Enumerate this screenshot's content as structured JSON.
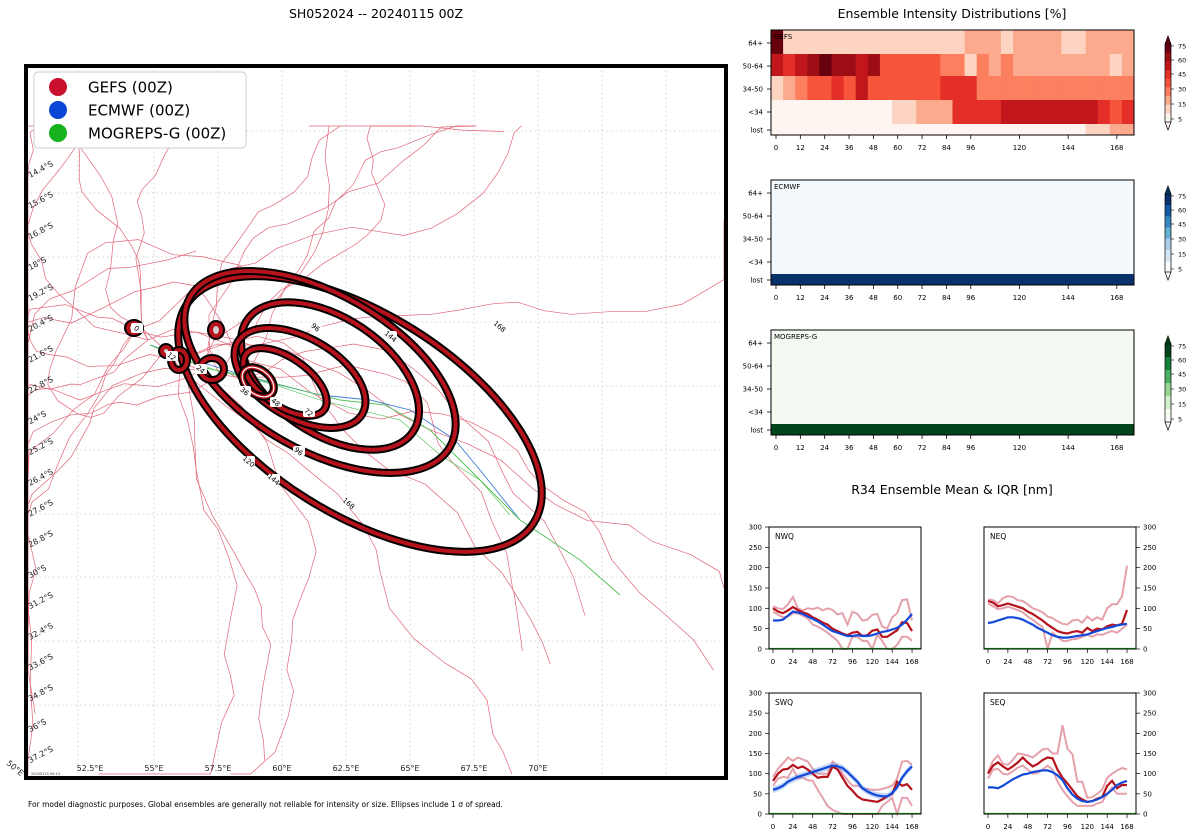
{
  "map": {
    "title": "SH052024 -- 20240115 00Z",
    "legend": [
      {
        "label": "GEFS (00Z)",
        "color": "#c8102e"
      },
      {
        "label": "ECMWF (00Z)",
        "color": "#0a47d6"
      },
      {
        "label": "MOGREPS-G (00Z)",
        "color": "#17b31f"
      }
    ],
    "lat_labels": [
      "14.4°S",
      "15.6°S",
      "16.8°S",
      "18°S",
      "19.2°S",
      "20.4°S",
      "21.6°S",
      "22.8°S",
      "24°S",
      "25.2°S",
      "26.4°S",
      "27.6°S",
      "28.8°S",
      "30°S",
      "31.2°S",
      "32.4°S",
      "33.6°S",
      "34.8°S",
      "36°S",
      "37.2°S"
    ],
    "lon_labels": [
      "52.5°E",
      "55°E",
      "57.5°E",
      "60°E",
      "62.5°E",
      "65°E",
      "67.5°E",
      "70°E"
    ],
    "corner_label": "50°E",
    "timestamp": "20240115 00:13",
    "ellipse_labels": [
      "0",
      "12",
      "24",
      "36",
      "48",
      "72",
      "96",
      "96",
      "120",
      "144",
      "144",
      "168",
      "168"
    ],
    "footnote": "For model diagnostic purposes. Global ensembles are generally not reliable for intensity or size. Ellipses include 1 σ of spread."
  },
  "chart_data": [
    {
      "type": "heatmap",
      "title": "Ensemble Intensity Distributions [%]",
      "model": "GEFS",
      "rows": [
        "64+",
        "50-64",
        "34-50",
        "<34",
        "lost"
      ],
      "xticks": [
        0,
        12,
        24,
        36,
        48,
        60,
        72,
        84,
        96,
        120,
        144,
        168
      ],
      "colorbar_ticks": [
        75,
        60,
        45,
        30,
        15,
        5
      ],
      "colors": [
        "#fff5f0",
        "#fdd4c2",
        "#fcaa8e",
        "#fc7f5f",
        "#f6553c",
        "#e32f27",
        "#c1161b",
        "#9c0d14",
        "#67000d"
      ],
      "values": [
        [
          8,
          1,
          1,
          1,
          1,
          1,
          1,
          1,
          1,
          1,
          1,
          1,
          1,
          1,
          1,
          1,
          2,
          2,
          2,
          1,
          2,
          2,
          2,
          2,
          1,
          1,
          2,
          2,
          2,
          2
        ],
        [
          6,
          5,
          6,
          7,
          8,
          7,
          7,
          6,
          7,
          4,
          4,
          4,
          4,
          4,
          3,
          3,
          1,
          3,
          2,
          3,
          2,
          2,
          2,
          2,
          2,
          2,
          2,
          2,
          1,
          2
        ],
        [
          1,
          2,
          3,
          4,
          4,
          5,
          4,
          6,
          4,
          4,
          4,
          4,
          4,
          4,
          5,
          5,
          5,
          3,
          3,
          3,
          3,
          3,
          3,
          3,
          3,
          3,
          3,
          3,
          3,
          3
        ],
        [
          0,
          0,
          0,
          0,
          0,
          0,
          0,
          0,
          0,
          0,
          1,
          1,
          2,
          2,
          2,
          5,
          5,
          5,
          5,
          6,
          6,
          6,
          6,
          6,
          6,
          6,
          6,
          5,
          4,
          5
        ],
        [
          0,
          0,
          0,
          0,
          0,
          0,
          0,
          0,
          0,
          0,
          0,
          0,
          0,
          0,
          0,
          0,
          0,
          0,
          0,
          0,
          0,
          0,
          0,
          0,
          0,
          0,
          1,
          1,
          2,
          2
        ]
      ]
    },
    {
      "type": "heatmap",
      "model": "ECMWF",
      "rows": [
        "64+",
        "50-64",
        "34-50",
        "<34",
        "lost"
      ],
      "xticks": [
        0,
        12,
        24,
        36,
        48,
        60,
        72,
        84,
        96,
        120,
        144,
        168
      ],
      "colorbar_ticks": [
        75,
        60,
        45,
        30,
        15,
        5
      ],
      "colors": [
        "#f7fbff",
        "#d6e6f4",
        "#abd0e6",
        "#6aaed6",
        "#3787c0",
        "#105ba4",
        "#08306b"
      ],
      "base_color": "#f4f9fe",
      "lost_color": "#08306b",
      "lost_value": 100
    },
    {
      "type": "heatmap",
      "model": "MOGREPS-G",
      "rows": [
        "64+",
        "50-64",
        "34-50",
        "<34",
        "lost"
      ],
      "xticks": [
        0,
        12,
        24,
        36,
        48,
        60,
        72,
        84,
        96,
        120,
        144,
        168
      ],
      "colorbar_ticks": [
        75,
        60,
        45,
        30,
        15,
        5
      ],
      "colors": [
        "#f7fcf5",
        "#d3eecd",
        "#98d594",
        "#4bb062",
        "#157f3b",
        "#00441b"
      ],
      "base_color": "#f4faf2",
      "lost_color": "#00441b",
      "lost_value": 100
    },
    {
      "type": "line",
      "title": "R34 Ensemble Mean & IQR [nm]",
      "x": [
        0,
        6,
        12,
        18,
        24,
        30,
        36,
        42,
        48,
        54,
        60,
        66,
        72,
        78,
        84,
        90,
        96,
        102,
        108,
        114,
        120,
        126,
        132,
        138,
        144,
        150,
        156,
        162,
        168
      ],
      "ylim": [
        0,
        300
      ],
      "yticks": [
        0,
        50,
        100,
        150,
        200,
        250,
        300
      ],
      "xticks": [
        0,
        24,
        48,
        72,
        96,
        120,
        144,
        168
      ],
      "panels": [
        {
          "name": "NWQ",
          "gefs_mean": [
            100,
            92,
            88,
            95,
            103,
            96,
            90,
            86,
            78,
            72,
            65,
            60,
            50,
            44,
            38,
            34,
            40,
            42,
            32,
            34,
            45,
            48,
            30,
            30,
            38,
            46,
            66,
            64,
            44
          ],
          "gefs_iqr_hi": [
            105,
            100,
            98,
            110,
            128,
            100,
            95,
            100,
            98,
            102,
            95,
            100,
            96,
            85,
            88,
            60,
            92,
            86,
            70,
            72,
            84,
            86,
            55,
            50,
            78,
            88,
            120,
            122,
            70
          ],
          "gefs_iqr_lo": [
            92,
            84,
            78,
            80,
            88,
            88,
            82,
            75,
            60,
            55,
            48,
            40,
            30,
            20,
            0,
            0,
            30,
            30,
            20,
            20,
            0,
            35,
            20,
            0,
            0,
            10,
            30,
            30,
            20
          ],
          "ecmwf_mean": [
            70,
            70,
            72,
            82,
            92,
            90,
            86,
            80,
            74,
            68,
            60,
            52,
            44,
            40,
            36,
            32,
            32,
            34,
            32,
            32,
            34,
            38,
            42,
            44,
            48,
            52,
            60,
            72,
            86
          ]
        },
        {
          "name": "NEQ",
          "gefs_mean": [
            118,
            114,
            105,
            108,
            112,
            108,
            104,
            100,
            92,
            86,
            78,
            70,
            60,
            52,
            44,
            40,
            38,
            42,
            44,
            40,
            52,
            44,
            50,
            48,
            56,
            60,
            58,
            62,
            96
          ],
          "gefs_iqr_hi": [
            122,
            120,
            112,
            125,
            130,
            128,
            120,
            118,
            110,
            100,
            96,
            90,
            80,
            76,
            68,
            62,
            60,
            70,
            72,
            65,
            80,
            70,
            78,
            72,
            100,
            110,
            110,
            130,
            205
          ],
          "gefs_iqr_lo": [
            112,
            105,
            98,
            100,
            104,
            100,
            96,
            90,
            80,
            72,
            62,
            54,
            0,
            40,
            30,
            20,
            20,
            24,
            25,
            30,
            35,
            30,
            36,
            35,
            40,
            44,
            40,
            50,
            60
          ],
          "ecmwf_mean": [
            64,
            66,
            70,
            74,
            78,
            78,
            76,
            72,
            66,
            60,
            52,
            46,
            40,
            34,
            30,
            28,
            28,
            30,
            32,
            34,
            36,
            40,
            44,
            48,
            52,
            54,
            58,
            60,
            62
          ]
        },
        {
          "name": "SWQ",
          "gefs_mean": [
            82,
            100,
            110,
            112,
            122,
            114,
            118,
            110,
            100,
            90,
            92,
            92,
            118,
            110,
            90,
            70,
            58,
            44,
            36,
            34,
            32,
            30,
            36,
            44,
            50,
            80,
            70,
            74,
            60
          ],
          "gefs_iqr_hi": [
            92,
            112,
            125,
            140,
            132,
            140,
            135,
            130,
            112,
            100,
            100,
            100,
            130,
            120,
            100,
            84,
            70,
            70,
            64,
            62,
            60,
            60,
            62,
            66,
            70,
            88,
            130,
            132,
            122
          ],
          "gefs_iqr_lo": [
            70,
            88,
            92,
            90,
            112,
            88,
            90,
            84,
            82,
            60,
            40,
            20,
            10,
            5,
            0,
            0,
            0,
            0,
            0,
            0,
            0,
            0,
            20,
            30,
            40,
            0,
            40,
            40,
            20
          ],
          "ecmwf_mean": [
            60,
            64,
            70,
            80,
            86,
            92,
            96,
            100,
            104,
            108,
            112,
            116,
            120,
            118,
            114,
            104,
            92,
            80,
            64,
            56,
            50,
            46,
            44,
            44,
            52,
            66,
            90,
            106,
            118
          ],
          "ecmwf_band": 8
        },
        {
          "name": "SEQ",
          "gefs_mean": [
            100,
            120,
            128,
            118,
            110,
            118,
            128,
            140,
            128,
            118,
            124,
            134,
            140,
            138,
            110,
            90,
            76,
            60,
            44,
            36,
            30,
            32,
            38,
            42,
            70,
            82,
            64,
            72,
            72
          ],
          "gefs_iqr_hi": [
            104,
            132,
            145,
            125,
            122,
            134,
            150,
            148,
            145,
            140,
            150,
            160,
            162,
            150,
            150,
            220,
            162,
            148,
            80,
            80,
            40,
            42,
            50,
            60,
            90,
            100,
            108,
            114,
            110
          ],
          "gefs_iqr_lo": [
            88,
            110,
            112,
            100,
            98,
            106,
            115,
            120,
            110,
            100,
            102,
            110,
            120,
            110,
            80,
            60,
            44,
            30,
            20,
            20,
            20,
            20,
            26,
            30,
            50,
            66,
            50,
            50,
            50
          ],
          "ecmwf_mean": [
            66,
            66,
            64,
            70,
            78,
            86,
            92,
            98,
            100,
            104,
            106,
            108,
            108,
            104,
            96,
            84,
            64,
            48,
            38,
            32,
            30,
            32,
            36,
            42,
            50,
            60,
            72,
            78,
            82
          ]
        }
      ]
    }
  ]
}
